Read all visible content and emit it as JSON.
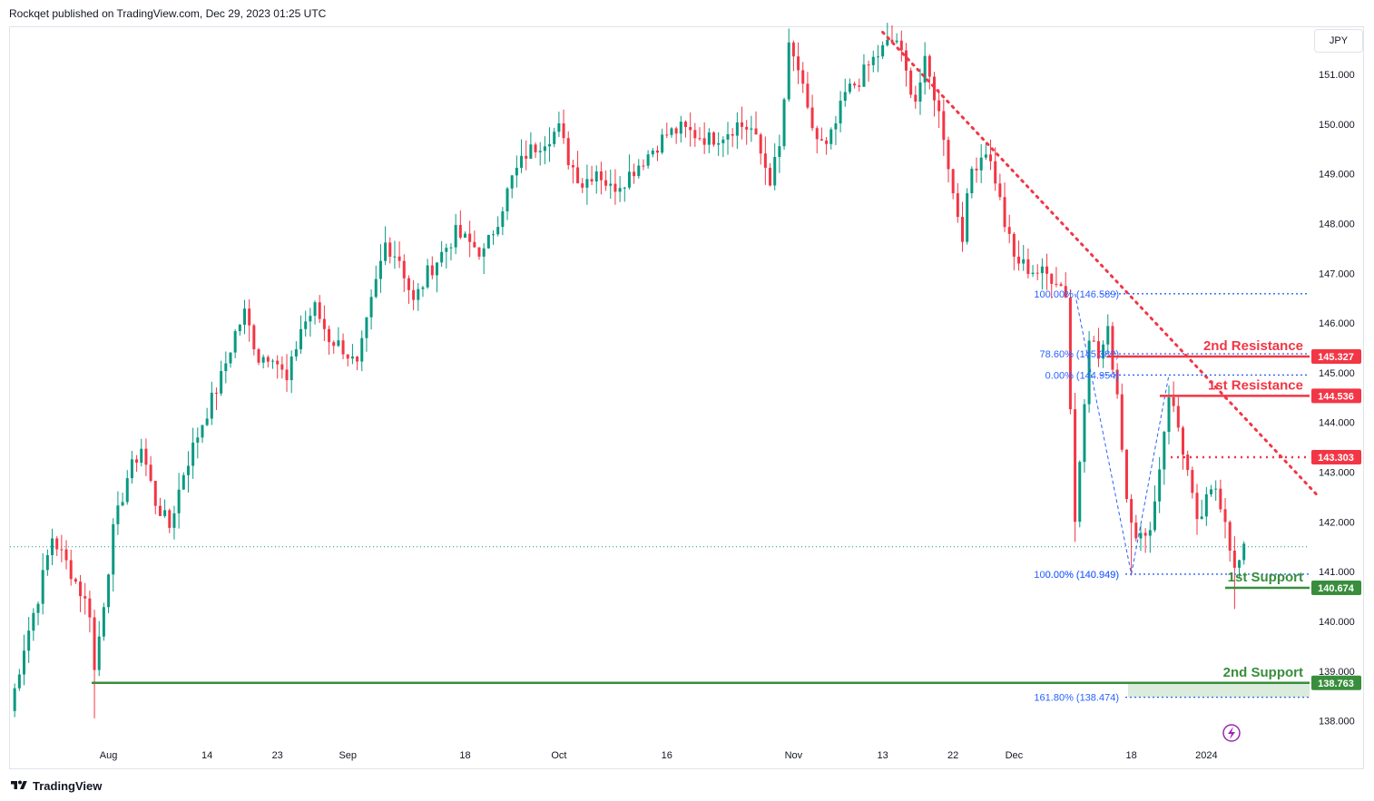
{
  "header": {
    "published_text": "Rockqet published on TradingView.com, Dec 29, 2023 01:25 UTC"
  },
  "currency_button": "JPY",
  "footer": {
    "brand": "TradingView",
    "logo_icon": "tradingview-logo-icon"
  },
  "colors": {
    "up": "#089981",
    "down": "#f23645",
    "resistance": "#f23645",
    "support": "#388e3c",
    "fib": "#2962ff",
    "axis_text": "#131722",
    "grid": "#e0e3eb",
    "last_price_line": "#089981"
  },
  "chart_data": {
    "type": "candlestick",
    "symbol_currency": "JPY",
    "price_axis": {
      "min": 137.5,
      "max": 151.95,
      "ticks": [
        "138.000",
        "139.000",
        "140.000",
        "141.000",
        "142.000",
        "143.000",
        "144.000",
        "145.000",
        "146.000",
        "147.000",
        "148.000",
        "149.000",
        "150.000",
        "151.000"
      ]
    },
    "time_axis": {
      "labels": [
        "Aug",
        "14",
        "23",
        "Sep",
        "18",
        "Oct",
        "16",
        "Nov",
        "13",
        "22",
        "Dec",
        "18",
        "2024"
      ],
      "label_index": [
        21,
        42,
        57,
        72,
        97,
        117,
        140,
        167,
        186,
        201,
        214,
        239,
        255
      ]
    },
    "bar_count": 277,
    "close_anchors": [
      [
        0,
        138.2
      ],
      [
        3,
        139.5
      ],
      [
        6,
        140.5
      ],
      [
        9,
        141.7
      ],
      [
        13,
        141.0
      ],
      [
        17,
        140.2
      ],
      [
        18,
        139.0
      ],
      [
        20,
        140.4
      ],
      [
        22,
        141.8
      ],
      [
        25,
        142.9
      ],
      [
        28,
        143.5
      ],
      [
        31,
        142.4
      ],
      [
        34,
        141.9
      ],
      [
        37,
        143.0
      ],
      [
        41,
        144.0
      ],
      [
        45,
        144.9
      ],
      [
        48,
        145.8
      ],
      [
        50,
        146.2
      ],
      [
        53,
        145.3
      ],
      [
        56,
        145.4
      ],
      [
        59,
        144.8
      ],
      [
        62,
        145.9
      ],
      [
        65,
        146.3
      ],
      [
        68,
        145.7
      ],
      [
        71,
        145.5
      ],
      [
        74,
        145.1
      ],
      [
        77,
        146.4
      ],
      [
        80,
        147.6
      ],
      [
        83,
        147.3
      ],
      [
        86,
        146.4
      ],
      [
        89,
        147.0
      ],
      [
        92,
        147.4
      ],
      [
        95,
        147.8
      ],
      [
        98,
        147.6
      ],
      [
        101,
        147.4
      ],
      [
        104,
        148.1
      ],
      [
        107,
        148.9
      ],
      [
        110,
        149.4
      ],
      [
        114,
        149.7
      ],
      [
        117,
        149.9
      ],
      [
        119,
        149.3
      ],
      [
        122,
        148.8
      ],
      [
        125,
        149.1
      ],
      [
        128,
        148.7
      ],
      [
        131,
        148.9
      ],
      [
        134,
        149.2
      ],
      [
        137,
        149.5
      ],
      [
        140,
        149.8
      ],
      [
        143,
        149.9
      ],
      [
        146,
        149.8
      ],
      [
        149,
        149.7
      ],
      [
        152,
        149.8
      ],
      [
        155,
        150.0
      ],
      [
        158,
        149.9
      ],
      [
        160,
        149.4
      ],
      [
        162,
        148.9
      ],
      [
        164,
        149.5
      ],
      [
        166,
        151.5
      ],
      [
        168,
        151.1
      ],
      [
        170,
        150.2
      ],
      [
        172,
        149.7
      ],
      [
        174,
        149.5
      ],
      [
        176,
        150.0
      ],
      [
        178,
        150.6
      ],
      [
        181,
        150.9
      ],
      [
        184,
        151.3
      ],
      [
        187,
        151.6
      ],
      [
        189,
        151.7
      ],
      [
        191,
        151.0
      ],
      [
        193,
        150.5
      ],
      [
        195,
        151.2
      ],
      [
        197,
        150.6
      ],
      [
        199,
        149.8
      ],
      [
        201,
        148.6
      ],
      [
        203,
        147.8
      ],
      [
        205,
        149.1
      ],
      [
        208,
        149.5
      ],
      [
        210,
        148.9
      ],
      [
        212,
        148.0
      ],
      [
        214,
        147.3
      ],
      [
        217,
        147.1
      ],
      [
        220,
        147.0
      ],
      [
        223,
        146.9
      ],
      [
        225,
        146.6
      ],
      [
        227,
        142.0
      ],
      [
        230,
        145.8
      ],
      [
        232,
        145.3
      ],
      [
        234,
        145.8
      ],
      [
        236,
        144.6
      ],
      [
        238,
        142.5
      ],
      [
        240,
        141.8
      ],
      [
        242,
        141.6
      ],
      [
        244,
        142.4
      ],
      [
        247,
        144.6
      ],
      [
        249,
        143.9
      ],
      [
        251,
        143.0
      ],
      [
        253,
        141.9
      ],
      [
        255,
        142.4
      ],
      [
        257,
        142.7
      ],
      [
        259,
        142.1
      ],
      [
        261,
        141.0
      ],
      [
        262,
        141.2
      ],
      [
        263,
        141.4
      ]
    ],
    "shock_wicks": [
      {
        "index": 18,
        "low": 138.05
      },
      {
        "index": 227,
        "low": 141.6
      },
      {
        "index": 239,
        "low": 140.92
      },
      {
        "index": 261,
        "low": 140.25
      }
    ],
    "last_price": 141.5,
    "levels": [
      {
        "label": "2nd Resistance",
        "value": 145.327,
        "price_label": "145.327",
        "kind": "resistance"
      },
      {
        "label": "1st Resistance",
        "value": 144.536,
        "price_label": "144.536",
        "kind": "resistance"
      },
      {
        "label": "",
        "value": 143.303,
        "price_label": "143.303",
        "kind": "resistance-dotted"
      },
      {
        "label": "1st Support",
        "value": 140.674,
        "price_label": "140.674",
        "kind": "support"
      },
      {
        "label": "2nd Support",
        "value": 138.763,
        "price_label": "138.763",
        "kind": "support"
      }
    ],
    "fib_labels": [
      {
        "text": "100.00% (146.589)",
        "value": 146.589
      },
      {
        "text": "78.60% (145.382)",
        "value": 145.382
      },
      {
        "text": "0.00% (144.954)",
        "value": 144.954
      },
      {
        "text": "0.00% (140.949)",
        "value": 140.949
      },
      {
        "text": "100.00% (140.949)",
        "value": 140.949
      },
      {
        "text": "161.80% (138.474)",
        "value": 138.474
      }
    ],
    "trendline": {
      "from": [
        186,
        151.85
      ],
      "to": [
        279,
        142.5
      ]
    }
  }
}
